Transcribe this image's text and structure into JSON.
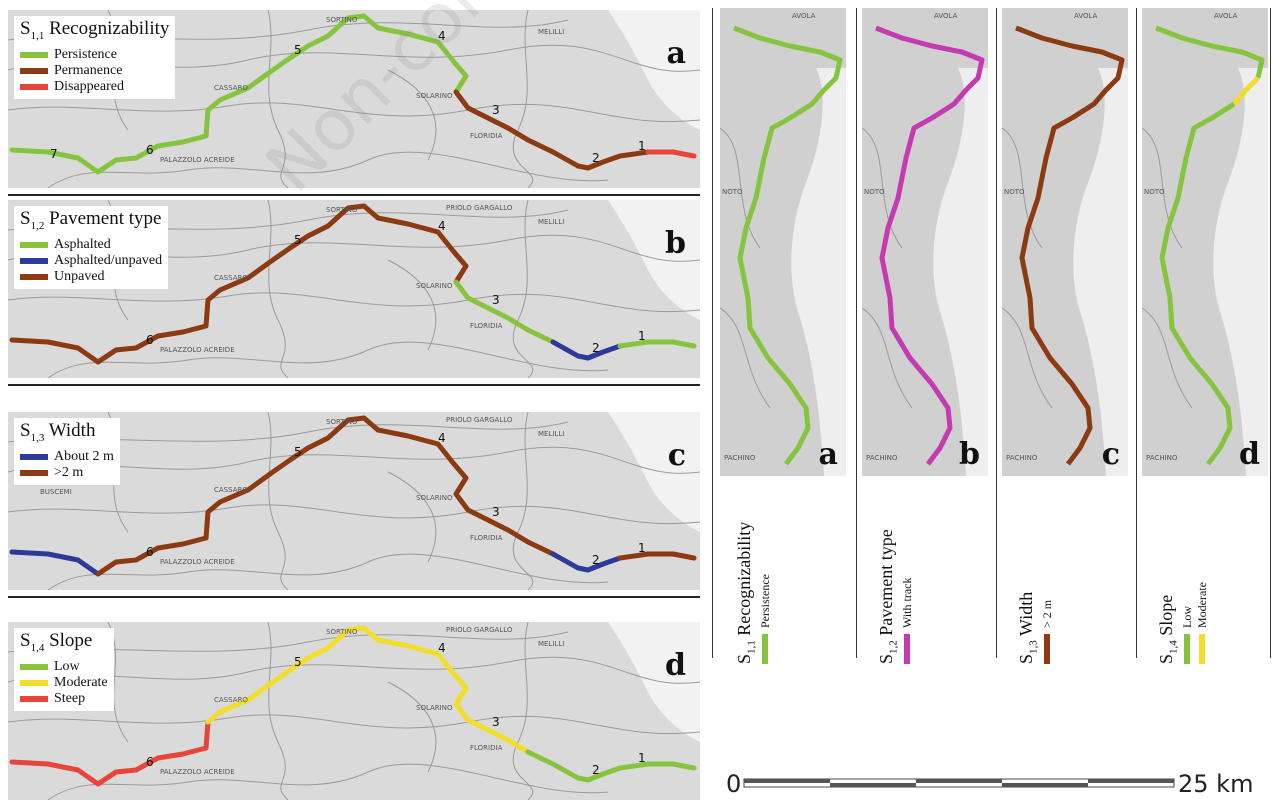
{
  "watermark": "Non-commercial",
  "towns": {
    "solarino": "SOLARINO",
    "floridia": "FLORIDIA",
    "buscemi": "BUSCEMI",
    "palazzolo": "PALAZZOLO ACREIDE",
    "melilli": "MELILLI",
    "priolo": "PRIOLO GARGALLO",
    "cassaro": "CASSARO",
    "sortino": "SORTINO",
    "avola": "AVOLA",
    "noto": "NOTO",
    "pachino": "PACHINO"
  },
  "segments": [
    "1",
    "2",
    "3",
    "4",
    "5",
    "6",
    "7"
  ],
  "panels": [
    {
      "letter": "a",
      "title_prefix": "S",
      "title_sub": "1,1",
      "title_text": "Recognizability",
      "legend": [
        {
          "label": "Persistence",
          "color": "#86c440"
        },
        {
          "label": "Permanence",
          "color": "#8b3a12"
        },
        {
          "label": "Disappeared",
          "color": "#e8443a"
        }
      ]
    },
    {
      "letter": "b",
      "title_prefix": "S",
      "title_sub": "1,2",
      "title_text": "Pavement type",
      "legend": [
        {
          "label": "Asphalted",
          "color": "#86c440"
        },
        {
          "label": "Asphalted/unpaved",
          "color": "#2d3a9a"
        },
        {
          "label": "Unpaved",
          "color": "#8b3a12"
        }
      ]
    },
    {
      "letter": "c",
      "title_prefix": "S",
      "title_sub": "1,3",
      "title_text": "Width",
      "legend": [
        {
          "label": "About 2 m",
          "color": "#2d3a9a"
        },
        {
          "label": ">2 m",
          "color": "#8b3a12"
        }
      ]
    },
    {
      "letter": "d",
      "title_prefix": "S",
      "title_sub": "1,4",
      "title_text": "Slope",
      "legend": [
        {
          "label": "Low",
          "color": "#86c440"
        },
        {
          "label": "Moderate",
          "color": "#f2dd2a"
        },
        {
          "label": "Steep",
          "color": "#e8443a"
        }
      ]
    }
  ],
  "strips": [
    {
      "letter": "a",
      "title_prefix": "S",
      "title_sub": "1,1",
      "title_text": "Recognizability",
      "items": [
        "Persistence"
      ],
      "colors": [
        "#86c440"
      ]
    },
    {
      "letter": "b",
      "title_prefix": "S",
      "title_sub": "1,2",
      "title_text": "Pavement type",
      "items": [
        "With track"
      ],
      "colors": [
        "#c43ab0"
      ]
    },
    {
      "letter": "c",
      "title_prefix": "S",
      "title_sub": "1,3",
      "title_text": "Width",
      "items": [
        "> 2 m"
      ],
      "colors": [
        "#8b3a12"
      ]
    },
    {
      "letter": "d",
      "title_prefix": "S",
      "title_sub": "1,4",
      "title_text": "Slope",
      "items": [
        "Low",
        "Moderate"
      ],
      "colors": [
        "#86c440",
        "#f2dd2a"
      ]
    }
  ],
  "scale": {
    "start": "0",
    "end": "25 km"
  }
}
